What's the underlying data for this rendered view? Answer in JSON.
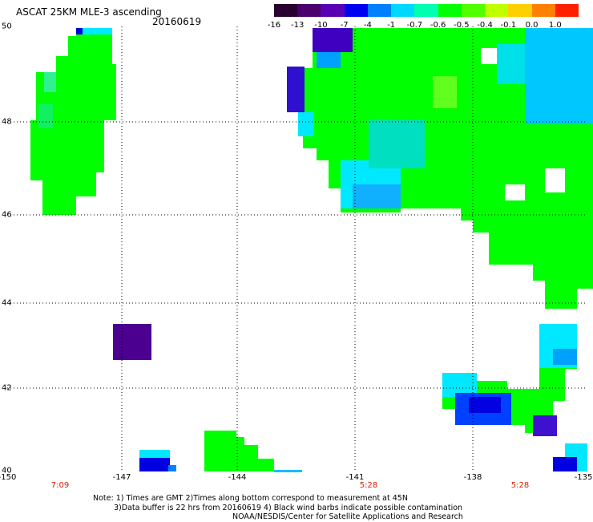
{
  "header": {
    "title": "ASCAT 25KM MLE-3 ascending",
    "date": "20160619"
  },
  "colorbar": {
    "labels": [
      "-16",
      "-13",
      "-10",
      "-7",
      "-4",
      "-1",
      "-0.7",
      "-0.6",
      "-0.5",
      "-0.4",
      "-0.1",
      "0.0",
      "1.0"
    ],
    "colors": [
      "#2a0030",
      "#4b006e",
      "#5a00b4",
      "#0000f0",
      "#0080ff",
      "#00d8ff",
      "#00ffb0",
      "#00ff00",
      "#50ff00",
      "#c0ff00",
      "#ffd000",
      "#ff8000",
      "#ff2000"
    ]
  },
  "axes": {
    "x_labels": [
      "-150",
      "-147",
      "-144",
      "-141",
      "-138",
      "-135"
    ],
    "y_labels": [
      "50",
      "48",
      "46",
      "44",
      "42",
      "40"
    ]
  },
  "times": [
    "7:09",
    "5:28",
    "5:28"
  ],
  "notes": {
    "line1": "Note: 1) Times are GMT 2)Times along bottom correspond to measurement at 45N",
    "line2": "3)Data buffer is 22 hrs from 20160619 4) Black wind barbs indicate possible contamination",
    "line3": "NOAA/NESDIS/Center for Satellite Applications and Research"
  }
}
